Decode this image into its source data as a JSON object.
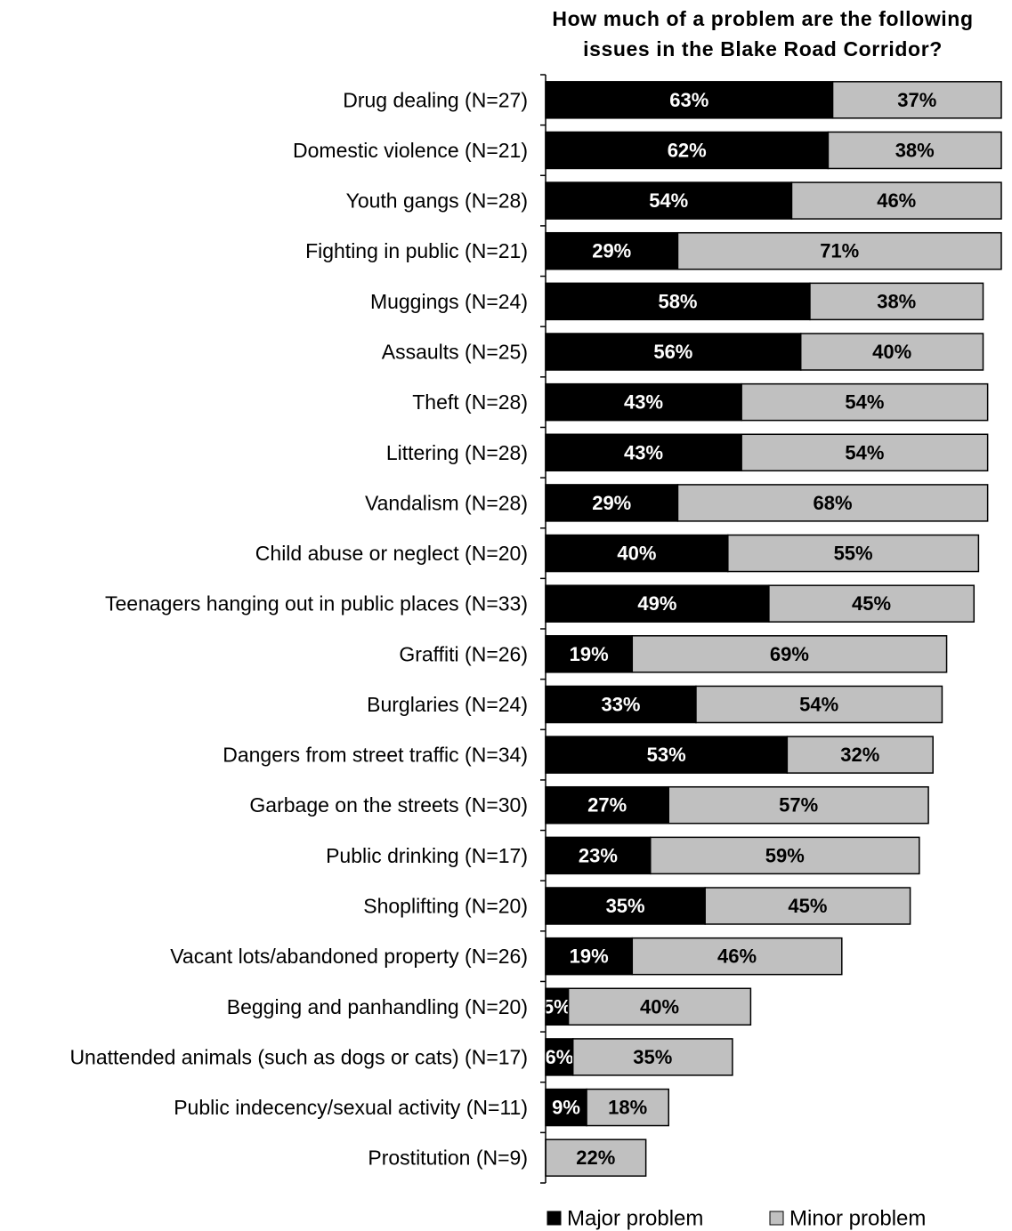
{
  "chart_data": {
    "type": "stacked_bar_horizontal",
    "title": "How much of a problem are the following issues in the Blake Road Corridor?",
    "categories": [
      "Drug dealing (N=27)",
      "Domestic violence (N=21)",
      "Youth gangs (N=28)",
      "Fighting in public (N=21)",
      "Muggings (N=24)",
      "Assaults (N=25)",
      "Theft (N=28)",
      "Littering (N=28)",
      "Vandalism (N=28)",
      "Child abuse or neglect (N=20)",
      "Teenagers hanging out in public places (N=33)",
      "Graffiti (N=26)",
      "Burglaries (N=24)",
      "Dangers from street traffic (N=34)",
      "Garbage on the streets (N=30)",
      "Public drinking (N=17)",
      "Shoplifting (N=20)",
      "Vacant lots/abandoned property (N=26)",
      "Begging and panhandling (N=20)",
      "Unattended animals (such as dogs or cats) (N=17)",
      "Public indecency/sexual activity (N=11)",
      "Prostitution (N=9)"
    ],
    "series": [
      {
        "name": "Major problem",
        "color": "#000000",
        "label_color": "#ffffff",
        "values": [
          63,
          62,
          54,
          29,
          58,
          56,
          43,
          43,
          29,
          40,
          49,
          19,
          33,
          53,
          27,
          23,
          35,
          19,
          5,
          6,
          9,
          0
        ],
        "value_labels": [
          "63%",
          "62%",
          "54%",
          "29%",
          "58%",
          "56%",
          "43%",
          "43%",
          "29%",
          "40%",
          "49%",
          "19%",
          "33%",
          "53%",
          "27%",
          "23%",
          "35%",
          "19%",
          "5%",
          "6%",
          "9%",
          null
        ]
      },
      {
        "name": "Minor problem",
        "color": "#c0c0c0",
        "label_color": "#000000",
        "values": [
          37,
          38,
          46,
          71,
          38,
          40,
          54,
          54,
          68,
          55,
          45,
          69,
          54,
          32,
          57,
          59,
          45,
          46,
          40,
          35,
          18,
          22
        ],
        "value_labels": [
          "37%",
          "38%",
          "46%",
          "71%",
          "38%",
          "40%",
          "54%",
          "54%",
          "68%",
          "55%",
          "45%",
          "69%",
          "54%",
          "32%",
          "57%",
          "59%",
          "45%",
          "46%",
          "40%",
          "35%",
          "18%",
          "22%"
        ]
      }
    ],
    "xlim": [
      0,
      100
    ]
  }
}
